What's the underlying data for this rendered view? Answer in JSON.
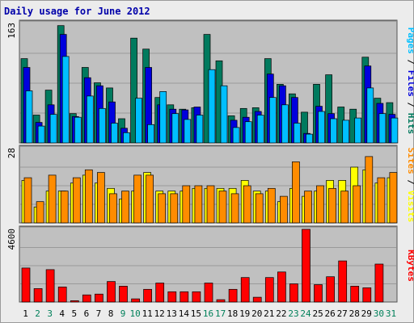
{
  "chart_data": {
    "title": "Daily usage for June 2012",
    "days": [
      "1",
      "2",
      "3",
      "4",
      "5",
      "6",
      "7",
      "8",
      "9",
      "10",
      "11",
      "12",
      "13",
      "14",
      "15",
      "16",
      "17",
      "18",
      "19",
      "20",
      "21",
      "22",
      "23",
      "24",
      "25",
      "26",
      "27",
      "28",
      "29",
      "30",
      "31"
    ],
    "weekend_days": [
      "2",
      "3",
      "9",
      "10",
      "16",
      "17",
      "23",
      "24",
      "30",
      "31"
    ],
    "colors": {
      "hits": "#007a5e",
      "files": "#0000dd",
      "pages": "#00bfff",
      "visits": "#ffff00",
      "sites": "#ff8c00",
      "kbytes": "#ff0000",
      "weekday_label": "#000000",
      "weekend_label": "#00805a",
      "plot_bg": "#c0c0c0",
      "bar_outline": "#000000"
    },
    "panels": [
      {
        "type": "bar",
        "ymax_label": "163",
        "ylim": [
          0,
          163
        ],
        "axis_label_parts": [
          {
            "text": "Pages",
            "color": "#00bfff"
          },
          {
            "text": " / ",
            "color": "#000000"
          },
          {
            "text": "Files",
            "color": "#0000dd"
          },
          {
            "text": " / ",
            "color": "#000000"
          },
          {
            "text": "Hits",
            "color": "#007a5e"
          }
        ],
        "series": [
          {
            "name": "Hits",
            "key": "hits",
            "values": [
              115,
              38,
              72,
              160,
              40,
              103,
              82,
              75,
              33,
              143,
              128,
              62,
              52,
              46,
              48,
              148,
              112,
              37,
              47,
              48,
              115,
              80,
              67,
              42,
              80,
              93,
              49,
              46,
              117,
              61,
              55
            ]
          },
          {
            "name": "Files",
            "key": "files",
            "values": [
              103,
              28,
              52,
              148,
              36,
              89,
              78,
              56,
              20,
              0,
              103,
              52,
              46,
              45,
              49,
              0,
              0,
              31,
              35,
              43,
              94,
              78,
              62,
              13,
              50,
              40,
              0,
              0,
              105,
              54,
              39
            ]
          },
          {
            "name": "Pages",
            "key": "pages",
            "values": [
              71,
              23,
              39,
              118,
              35,
              64,
              47,
              27,
              14,
              61,
              25,
              70,
              40,
              32,
              38,
              100,
              78,
              21,
              29,
              38,
              62,
              52,
              27,
              12,
              43,
              33,
              31,
              34,
              75,
              40,
              34
            ]
          }
        ]
      },
      {
        "type": "bar",
        "ymax_label": "28",
        "ylim": [
          0,
          28
        ],
        "axis_label_parts": [
          {
            "text": "Sites",
            "color": "#ff8c00"
          },
          {
            "text": " / ",
            "color": "#000000"
          },
          {
            "text": "Visits",
            "color": "#ffff00"
          }
        ],
        "series": [
          {
            "name": "Visits",
            "key": "visits",
            "values": [
              16,
              6,
              12,
              12,
              15,
              18,
              15,
              13,
              9,
              12,
              19,
              12,
              12,
              12,
              13,
              13,
              13,
              13,
              16,
              12,
              12,
              8,
              13,
              10,
              12,
              16,
              16,
              21,
              20,
              15,
              17
            ]
          },
          {
            "name": "Sites",
            "key": "sites",
            "values": [
              17,
              8,
              18,
              12,
              17,
              20,
              19,
              11,
              12,
              18,
              18,
              11,
              11,
              14,
              14,
              14,
              12,
              11,
              14,
              11,
              13,
              10,
              23,
              12,
              14,
              13,
              12,
              14,
              25,
              17,
              19
            ]
          }
        ]
      },
      {
        "type": "bar",
        "ymax_label": "4600",
        "ylim": [
          0,
          4600
        ],
        "axis_label_parts": [
          {
            "text": "KBytes",
            "color": "#ff0000"
          }
        ],
        "series": [
          {
            "name": "KBytes",
            "key": "kbytes",
            "values": [
              2150,
              850,
              2050,
              950,
              80,
              450,
              500,
              1300,
              1000,
              200,
              800,
              1200,
              650,
              650,
              650,
              1200,
              150,
              800,
              1550,
              300,
              1550,
              1900,
              1150,
              4600,
              1100,
              1600,
              2600,
              1000,
              900,
              2400,
              0
            ]
          }
        ]
      }
    ]
  }
}
